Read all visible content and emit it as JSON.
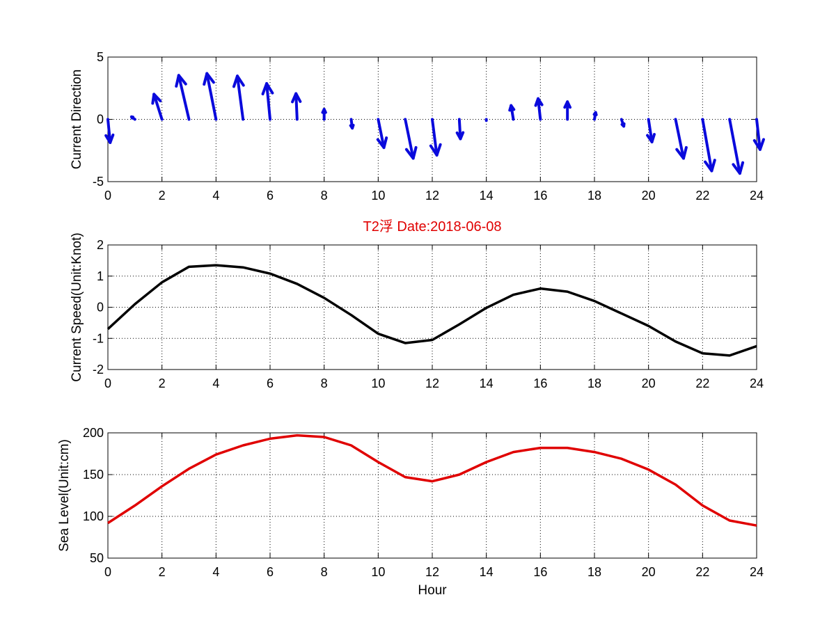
{
  "figure": {
    "title": "T2浮    Date:2018-06-08",
    "title_color": "#e00000",
    "background": "#ffffff"
  },
  "chart_data": [
    {
      "type": "quiver",
      "ylabel": "Current Direction",
      "xlabel": "",
      "xlim": [
        0,
        24
      ],
      "ylim": [
        -5,
        5
      ],
      "xticks": [
        0,
        2,
        4,
        6,
        8,
        10,
        12,
        14,
        16,
        18,
        20,
        22,
        24
      ],
      "yticks": [
        -5,
        0,
        5
      ],
      "grid": true,
      "color": "#0a0adc",
      "arrows": [
        {
          "x": 0,
          "u": 0.1,
          "v": -1.85
        },
        {
          "x": 1,
          "u": -0.15,
          "v": 0.2
        },
        {
          "x": 2,
          "u": -0.35,
          "v": 2.0
        },
        {
          "x": 3,
          "u": -0.45,
          "v": 3.5
        },
        {
          "x": 4,
          "u": -0.4,
          "v": 3.65
        },
        {
          "x": 5,
          "u": -0.25,
          "v": 3.45
        },
        {
          "x": 6,
          "u": -0.15,
          "v": 2.85
        },
        {
          "x": 7,
          "u": -0.05,
          "v": 2.05
        },
        {
          "x": 8,
          "u": 0.0,
          "v": 0.8
        },
        {
          "x": 9,
          "u": 0.05,
          "v": -0.7
        },
        {
          "x": 10,
          "u": 0.25,
          "v": -2.25
        },
        {
          "x": 11,
          "u": 0.35,
          "v": -3.1
        },
        {
          "x": 12,
          "u": 0.2,
          "v": -2.85
        },
        {
          "x": 13,
          "u": 0.05,
          "v": -1.55
        },
        {
          "x": 14,
          "u": 0.0,
          "v": -0.1
        },
        {
          "x": 15,
          "u": -0.1,
          "v": 1.1
        },
        {
          "x": 16,
          "u": -0.1,
          "v": 1.65
        },
        {
          "x": 17,
          "u": 0.0,
          "v": 1.4
        },
        {
          "x": 18,
          "u": 0.05,
          "v": 0.55
        },
        {
          "x": 19,
          "u": 0.1,
          "v": -0.55
        },
        {
          "x": 20,
          "u": 0.15,
          "v": -1.8
        },
        {
          "x": 21,
          "u": 0.35,
          "v": -3.1
        },
        {
          "x": 22,
          "u": 0.4,
          "v": -4.1
        },
        {
          "x": 23,
          "u": 0.45,
          "v": -4.3
        },
        {
          "x": 24,
          "u": 0.15,
          "v": -2.4
        }
      ]
    },
    {
      "type": "line",
      "ylabel": "Current Speed(Unit:Knot)",
      "xlabel": "",
      "xlim": [
        0,
        24
      ],
      "ylim": [
        -2,
        2
      ],
      "xticks": [
        0,
        2,
        4,
        6,
        8,
        10,
        12,
        14,
        16,
        18,
        20,
        22,
        24
      ],
      "yticks": [
        -2,
        -1,
        0,
        1,
        2
      ],
      "grid": true,
      "color": "#000000",
      "x": [
        0,
        1,
        2,
        3,
        4,
        5,
        6,
        7,
        8,
        9,
        10,
        11,
        12,
        13,
        14,
        15,
        16,
        17,
        18,
        19,
        20,
        21,
        22,
        23,
        24
      ],
      "values": [
        -0.7,
        0.1,
        0.8,
        1.3,
        1.35,
        1.28,
        1.08,
        0.75,
        0.3,
        -0.25,
        -0.85,
        -1.15,
        -1.05,
        -0.55,
        -0.02,
        0.4,
        0.6,
        0.5,
        0.2,
        -0.2,
        -0.6,
        -1.1,
        -1.48,
        -1.55,
        -1.25
      ]
    },
    {
      "type": "line",
      "ylabel": "Sea Level(Unit:cm)",
      "xlabel": "Hour",
      "xlim": [
        0,
        24
      ],
      "ylim": [
        50,
        200
      ],
      "xticks": [
        0,
        2,
        4,
        6,
        8,
        10,
        12,
        14,
        16,
        18,
        20,
        22,
        24
      ],
      "yticks": [
        50,
        100,
        150,
        200
      ],
      "grid": true,
      "color": "#e00000",
      "x": [
        0,
        1,
        2,
        3,
        4,
        5,
        6,
        7,
        8,
        9,
        10,
        11,
        12,
        13,
        14,
        15,
        16,
        17,
        18,
        19,
        20,
        21,
        22,
        23,
        24
      ],
      "values": [
        92,
        113,
        136,
        157,
        174,
        185,
        193,
        197,
        195,
        185,
        165,
        147,
        142,
        150,
        165,
        177,
        182,
        182,
        177,
        169,
        156,
        138,
        113,
        95,
        89
      ]
    }
  ]
}
